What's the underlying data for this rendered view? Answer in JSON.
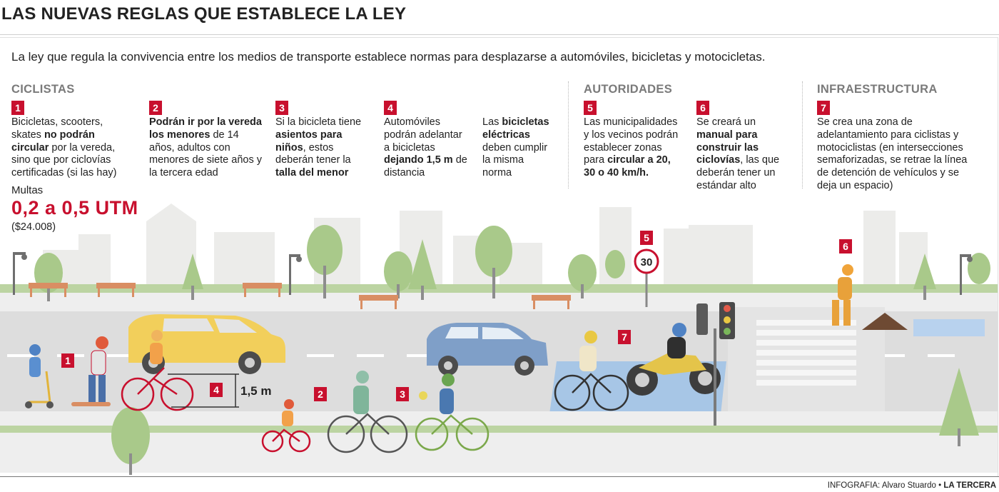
{
  "title": "LAS NUEVAS REGLAS QUE ESTABLECE LA LEY",
  "intro": "La ley que regula la convivencia entre los medios de transporte establece normas para desplazarse a automóviles, bicicletas y motocicletas.",
  "sections": {
    "ciclistas": "CICLISTAS",
    "autoridades": "AUTORIDADES",
    "infraestructura": "INFRAESTRUCTURA"
  },
  "rules": [
    {
      "number": "1",
      "parts": [
        {
          "text": "Bicicletas, scooters, skates ",
          "bold": false
        },
        {
          "text": "no podrán circular",
          "bold": true
        },
        {
          "text": " por la vereda, sino que por ciclovías certificadas (si las hay)",
          "bold": false
        }
      ]
    },
    {
      "number": "2",
      "parts": [
        {
          "text": "Podrán ir por la vereda los menores",
          "bold": true
        },
        {
          "text": " de 14 años, adultos con menores de siete años y la tercera edad",
          "bold": false
        }
      ]
    },
    {
      "number": "3",
      "parts": [
        {
          "text": "Si la bicicleta tiene ",
          "bold": false
        },
        {
          "text": "asientos para niños",
          "bold": true
        },
        {
          "text": ", estos deberán tener la ",
          "bold": false
        },
        {
          "text": "talla del menor",
          "bold": true
        }
      ]
    },
    {
      "number": "4",
      "parts": [
        {
          "text": "Automóviles podrán adelantar a bicicletas ",
          "bold": false
        },
        {
          "text": "dejando 1,5 m",
          "bold": true
        },
        {
          "text": " de distancia",
          "bold": false
        }
      ]
    },
    {
      "number": "",
      "parts": [
        {
          "text": "Las ",
          "bold": false
        },
        {
          "text": "bicicletas eléctricas",
          "bold": true
        },
        {
          "text": " deben cumplir la misma norma",
          "bold": false
        }
      ]
    },
    {
      "number": "5",
      "parts": [
        {
          "text": "Las municipalidades y los vecinos podrán establecer zonas para ",
          "bold": false
        },
        {
          "text": "circular a 20, 30 o 40 km/h.",
          "bold": true
        }
      ]
    },
    {
      "number": "6",
      "parts": [
        {
          "text": "Se creará un ",
          "bold": false
        },
        {
          "text": "manual para construir las ciclovías",
          "bold": true
        },
        {
          "text": ", las que deberán tener un estándar alto",
          "bold": false
        }
      ]
    },
    {
      "number": "7",
      "parts": [
        {
          "text": "Se crea una zona de adelantamiento para ciclistas y motociclistas (en intersecciones semaforizadas, se retrae la línea de detención de vehículos y se deja un espacio)",
          "bold": false
        }
      ]
    }
  ],
  "fines": {
    "label": "Multas",
    "value": "0,2 a 0,5 UTM",
    "sub": "($24.008)"
  },
  "scene": {
    "markers": [
      "1",
      "2",
      "3",
      "4",
      "5",
      "6",
      "7"
    ],
    "distance_label": "1,5 m",
    "speed_sign": "30"
  },
  "credit": {
    "prefix": "INFOGRAFIA: Alvaro Stuardo • ",
    "brand": "LA TERCERA"
  },
  "colors": {
    "accent": "#c8102e",
    "road": "#dcdcdc",
    "grass": "#a9c98a",
    "bike_lane": "#a7c6e6",
    "car_yellow": "#f2cf5b",
    "car_blue": "#7f9fc8"
  }
}
